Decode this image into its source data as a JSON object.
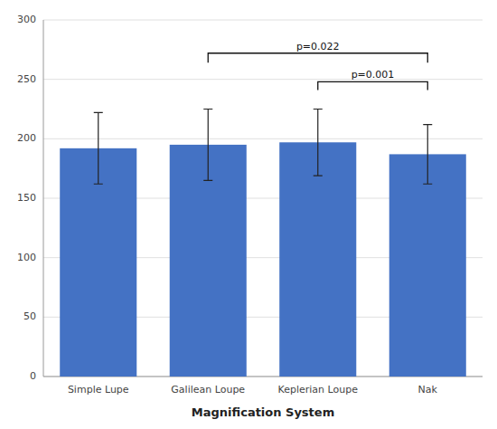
{
  "chart_data": {
    "type": "bar",
    "x_label": "Magnification System",
    "categories": [
      "Simple Lupe",
      "Galilean Loupe",
      "Keplerian Loupe",
      "Nak"
    ],
    "values": [
      192,
      195,
      197,
      187
    ],
    "errors": [
      30,
      30,
      28,
      25
    ],
    "color": "#4472C4",
    "ylim": [
      0,
      300
    ],
    "yticks": [
      0,
      50,
      100,
      150,
      200,
      250,
      300
    ],
    "grid": true,
    "annotations": [
      {
        "text": "p=0.022",
        "from": "Galilean Loupe",
        "to": "Nak",
        "y": 272,
        "drop": 8
      },
      {
        "text": "p=0.001",
        "from": "Keplerian Loupe",
        "to": "Nak",
        "y": 248,
        "drop": 7
      }
    ]
  }
}
